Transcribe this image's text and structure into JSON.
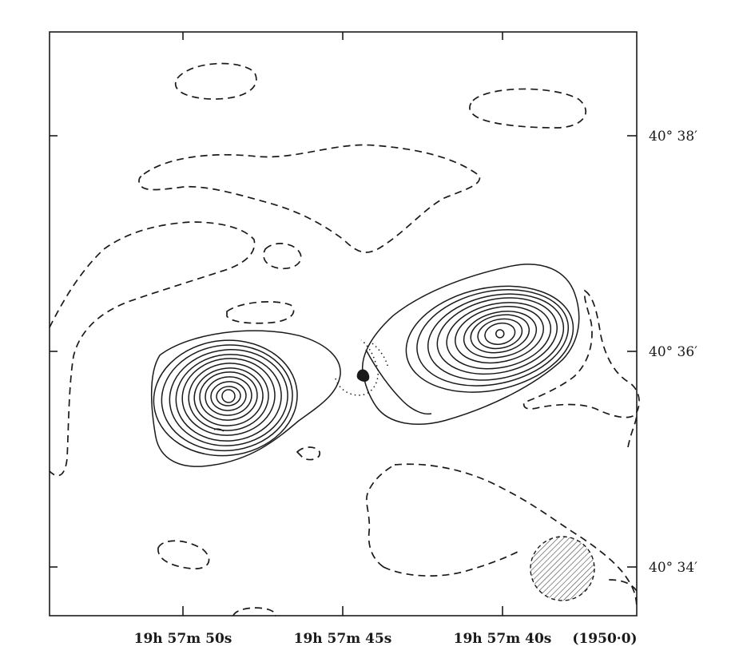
{
  "axes": {
    "x_ticks": [
      {
        "label": "19h 57m 50s"
      },
      {
        "label": "19h 57m 45s"
      },
      {
        "label": "19h 57m 40s"
      }
    ],
    "x_epoch": "(1950·0)",
    "y_ticks": [
      {
        "label": "40° 38′"
      },
      {
        "label": "40° 36′"
      },
      {
        "label": "40° 34′"
      }
    ]
  },
  "legend": {
    "beam_icon": "hatched-ellipse"
  }
}
